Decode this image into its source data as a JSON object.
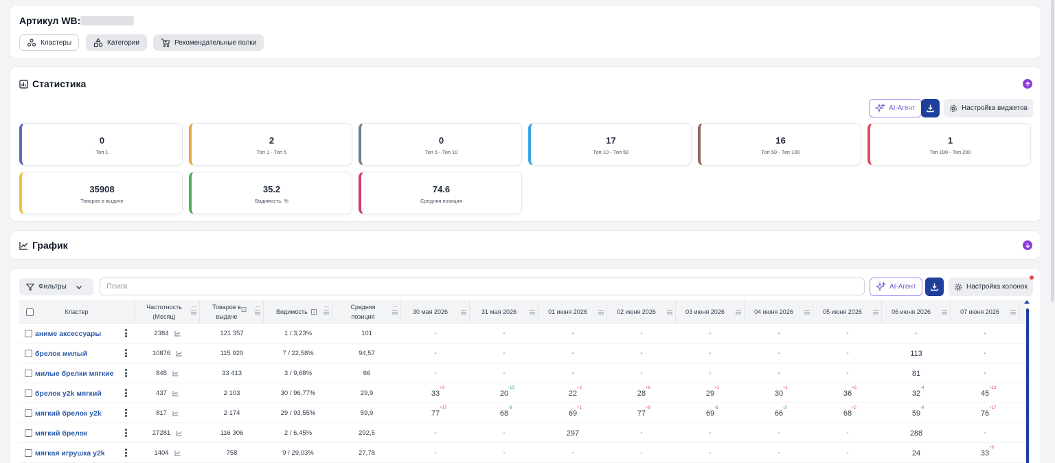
{
  "header": {
    "article_label": "Артикул WB:",
    "tabs": [
      {
        "label": "Кластеры",
        "icon": "clusters-icon"
      },
      {
        "label": "Категории",
        "icon": "categories-icon"
      },
      {
        "label": "Рекомендательные полки",
        "icon": "cart-icon"
      }
    ]
  },
  "stats": {
    "title": "Статистика",
    "ai_label": "AI-Агент",
    "settings_label": "Настройка виджетов",
    "cards": [
      {
        "value": "0",
        "label": "Топ 1",
        "color": "#5b6bbf"
      },
      {
        "value": "2",
        "label": "Топ 1 - Топ 5",
        "color": "#f0a53a"
      },
      {
        "value": "0",
        "label": "Топ 5 - Топ 10",
        "color": "#6b8090"
      },
      {
        "value": "17",
        "label": "Топ 10 - Топ 50",
        "color": "#3aa6e6"
      },
      {
        "value": "16",
        "label": "Топ 50 - Топ 100",
        "color": "#8a6a58"
      },
      {
        "value": "1",
        "label": "Топ 100 - Топ 200",
        "color": "#e04a5a"
      },
      {
        "value": "35908",
        "label": "Товаров в выдаче",
        "color": "#f0c23a"
      },
      {
        "value": "35.2",
        "label": "Видимость, %",
        "color": "#4cae5a"
      },
      {
        "value": "74.6",
        "label": "Средняя позиция",
        "color": "#d93a6e"
      }
    ]
  },
  "chart_section": {
    "title": "График"
  },
  "table": {
    "filter_label": "Фильтры",
    "search_placeholder": "Поиск",
    "ai_label": "AI-Агент",
    "settings_label": "Настройка колонок",
    "headers": {
      "cluster": "Кластер",
      "frequency": "Частотность (Месяц)",
      "products": "Товаров в выдаче",
      "visibility": "Видимость",
      "avg_position": "Средняя позиция",
      "dates": [
        "30 мая 2026",
        "31 мая 2026",
        "01 июня 2026",
        "02 июня 2026",
        "03 июня 2026",
        "04 июня 2026",
        "05 июня 2026",
        "06 июня 2026",
        "07 июня 2026"
      ]
    },
    "rows": [
      {
        "name": "аниме аксессуары",
        "freq": "2384",
        "products": "121 357",
        "visibility": "1 / 3,23%",
        "avg": "101",
        "days": [
          {
            "v": "-"
          },
          {
            "v": "-"
          },
          {
            "v": "-"
          },
          {
            "v": "-"
          },
          {
            "v": "-"
          },
          {
            "v": "-"
          },
          {
            "v": "-"
          },
          {
            "v": "-"
          },
          {
            "v": "-"
          }
        ]
      },
      {
        "name": "брелок милый",
        "freq": "10876",
        "products": "115 920",
        "visibility": "7 / 22,58%",
        "avg": "94,57",
        "days": [
          {
            "v": "-"
          },
          {
            "v": "-"
          },
          {
            "v": "-"
          },
          {
            "v": "-"
          },
          {
            "v": "-"
          },
          {
            "v": "-"
          },
          {
            "v": "-"
          },
          {
            "v": "113"
          },
          {
            "v": "-"
          }
        ]
      },
      {
        "name": "милые брелки мягкие",
        "freq": "848",
        "products": "33 413",
        "visibility": "3 / 9,68%",
        "avg": "66",
        "days": [
          {
            "v": "-"
          },
          {
            "v": "-"
          },
          {
            "v": "-"
          },
          {
            "v": "-"
          },
          {
            "v": "-"
          },
          {
            "v": "-"
          },
          {
            "v": "-"
          },
          {
            "v": "81"
          },
          {
            "v": "-"
          }
        ]
      },
      {
        "name": "брелок y2k мягкий",
        "freq": "437",
        "products": "2 103",
        "visibility": "30 / 96,77%",
        "avg": "29,9",
        "days": [
          {
            "v": "33",
            "d": "+3",
            "t": "up"
          },
          {
            "v": "20",
            "d": "-13",
            "t": "down"
          },
          {
            "v": "22",
            "d": "+2",
            "t": "up"
          },
          {
            "v": "28",
            "d": "+6",
            "t": "up"
          },
          {
            "v": "29",
            "d": "+1",
            "t": "up"
          },
          {
            "v": "30",
            "d": "+1",
            "t": "up"
          },
          {
            "v": "36",
            "d": "+6",
            "t": "up"
          },
          {
            "v": "32",
            "d": "-4",
            "t": "down"
          },
          {
            "v": "45",
            "d": "+13",
            "t": "up"
          }
        ]
      },
      {
        "name": "мягкий брелок y2k",
        "freq": "817",
        "products": "2 174",
        "visibility": "29 / 93,55%",
        "avg": "59,9",
        "days": [
          {
            "v": "77",
            "d": "+17",
            "t": "up"
          },
          {
            "v": "68",
            "d": "-9",
            "t": "down"
          },
          {
            "v": "69",
            "d": "+1",
            "t": "up"
          },
          {
            "v": "77",
            "d": "+8",
            "t": "up"
          },
          {
            "v": "69",
            "d": "-8",
            "t": "down"
          },
          {
            "v": "66",
            "d": "-3",
            "t": "down"
          },
          {
            "v": "68",
            "d": "+2",
            "t": "up"
          },
          {
            "v": "59",
            "d": "-9",
            "t": "down"
          },
          {
            "v": "76",
            "d": "+17",
            "t": "up"
          }
        ]
      },
      {
        "name": "мягкий брелок",
        "freq": "27281",
        "products": "116 306",
        "visibility": "2 / 6,45%",
        "avg": "292,5",
        "days": [
          {
            "v": "-"
          },
          {
            "v": "-"
          },
          {
            "v": "297"
          },
          {
            "v": "-"
          },
          {
            "v": "-"
          },
          {
            "v": "-"
          },
          {
            "v": "-"
          },
          {
            "v": "288"
          },
          {
            "v": "-"
          }
        ]
      },
      {
        "name": "мягкая игрушка y2k",
        "freq": "1404",
        "products": "758",
        "visibility": "9 / 29,03%",
        "avg": "27,78",
        "days": [
          {
            "v": "-"
          },
          {
            "v": "-"
          },
          {
            "v": "-"
          },
          {
            "v": "-"
          },
          {
            "v": "-"
          },
          {
            "v": "-"
          },
          {
            "v": "-"
          },
          {
            "v": "24"
          },
          {
            "v": "33",
            "d": "+9",
            "t": "up"
          }
        ]
      }
    ]
  }
}
